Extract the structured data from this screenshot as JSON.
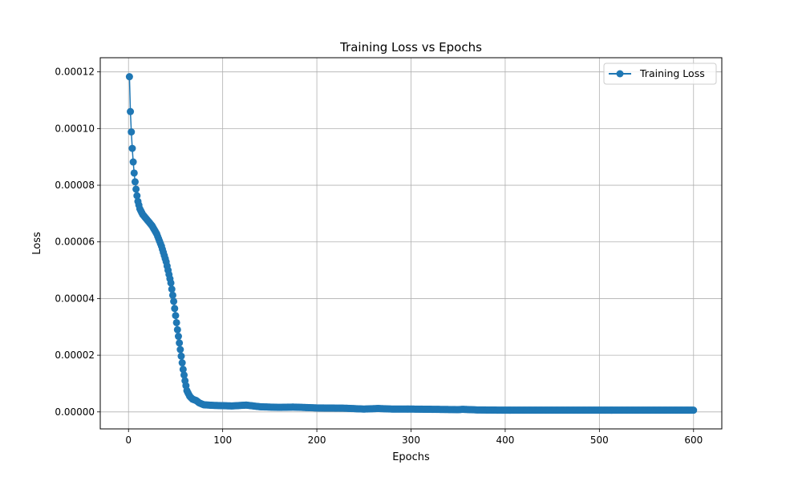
{
  "chart_data": {
    "type": "line",
    "title": "Training Loss vs Epochs",
    "xlabel": "Epochs",
    "ylabel": "Loss",
    "xlim": [
      -30,
      630
    ],
    "ylim": [
      -6e-06,
      0.000125
    ],
    "xticks": [
      0,
      100,
      200,
      300,
      400,
      500,
      600
    ],
    "xtick_labels": [
      "0",
      "100",
      "200",
      "300",
      "400",
      "500",
      "600"
    ],
    "yticks": [
      0,
      2e-05,
      4e-05,
      6e-05,
      8e-05,
      0.0001,
      0.00012
    ],
    "ytick_labels": [
      "0.00000",
      "0.00002",
      "0.00004",
      "0.00006",
      "0.00008",
      "0.00010",
      "0.00012"
    ],
    "grid": true,
    "legend": {
      "position": "top-right"
    },
    "series": [
      {
        "name": "Training Loss",
        "color": "#1f77b4",
        "marker": "circle",
        "keypoints": [
          [
            1,
            0.0001183
          ],
          [
            2,
            0.000106
          ],
          [
            3,
            9.88e-05
          ],
          [
            4,
            9.3e-05
          ],
          [
            5,
            8.82e-05
          ],
          [
            6,
            8.43e-05
          ],
          [
            7,
            8.12e-05
          ],
          [
            8,
            7.86e-05
          ],
          [
            9,
            7.63e-05
          ],
          [
            10,
            7.43e-05
          ],
          [
            12,
            7.17e-05
          ],
          [
            15,
            6.97e-05
          ],
          [
            20,
            6.77e-05
          ],
          [
            25,
            6.57e-05
          ],
          [
            30,
            6.28e-05
          ],
          [
            35,
            5.85e-05
          ],
          [
            40,
            5.3e-05
          ],
          [
            45,
            4.55e-05
          ],
          [
            48,
            3.9e-05
          ],
          [
            50,
            3.4e-05
          ],
          [
            52,
            2.9e-05
          ],
          [
            55,
            2.2e-05
          ],
          [
            58,
            1.5e-05
          ],
          [
            60,
            1.1e-05
          ],
          [
            62,
            7.5e-06
          ],
          [
            65,
            5.5e-06
          ],
          [
            68,
            4.5e-06
          ],
          [
            72,
            4e-06
          ],
          [
            75,
            3.2e-06
          ],
          [
            80,
            2.5e-06
          ],
          [
            90,
            2.3e-06
          ],
          [
            100,
            2.2e-06
          ],
          [
            110,
            2.1e-06
          ],
          [
            125,
            2.4e-06
          ],
          [
            140,
            1.8e-06
          ],
          [
            160,
            1.6e-06
          ],
          [
            175,
            1.7e-06
          ],
          [
            200,
            1.4e-06
          ],
          [
            230,
            1.3e-06
          ],
          [
            250,
            1e-06
          ],
          [
            265,
            1.2e-06
          ],
          [
            280,
            1e-06
          ],
          [
            300,
            1e-06
          ],
          [
            325,
            9e-07
          ],
          [
            350,
            8e-07
          ],
          [
            355,
            9e-07
          ],
          [
            370,
            7e-07
          ],
          [
            400,
            6e-07
          ],
          [
            450,
            6e-07
          ],
          [
            500,
            6e-07
          ],
          [
            550,
            6e-07
          ],
          [
            600,
            6e-07
          ]
        ]
      }
    ]
  }
}
